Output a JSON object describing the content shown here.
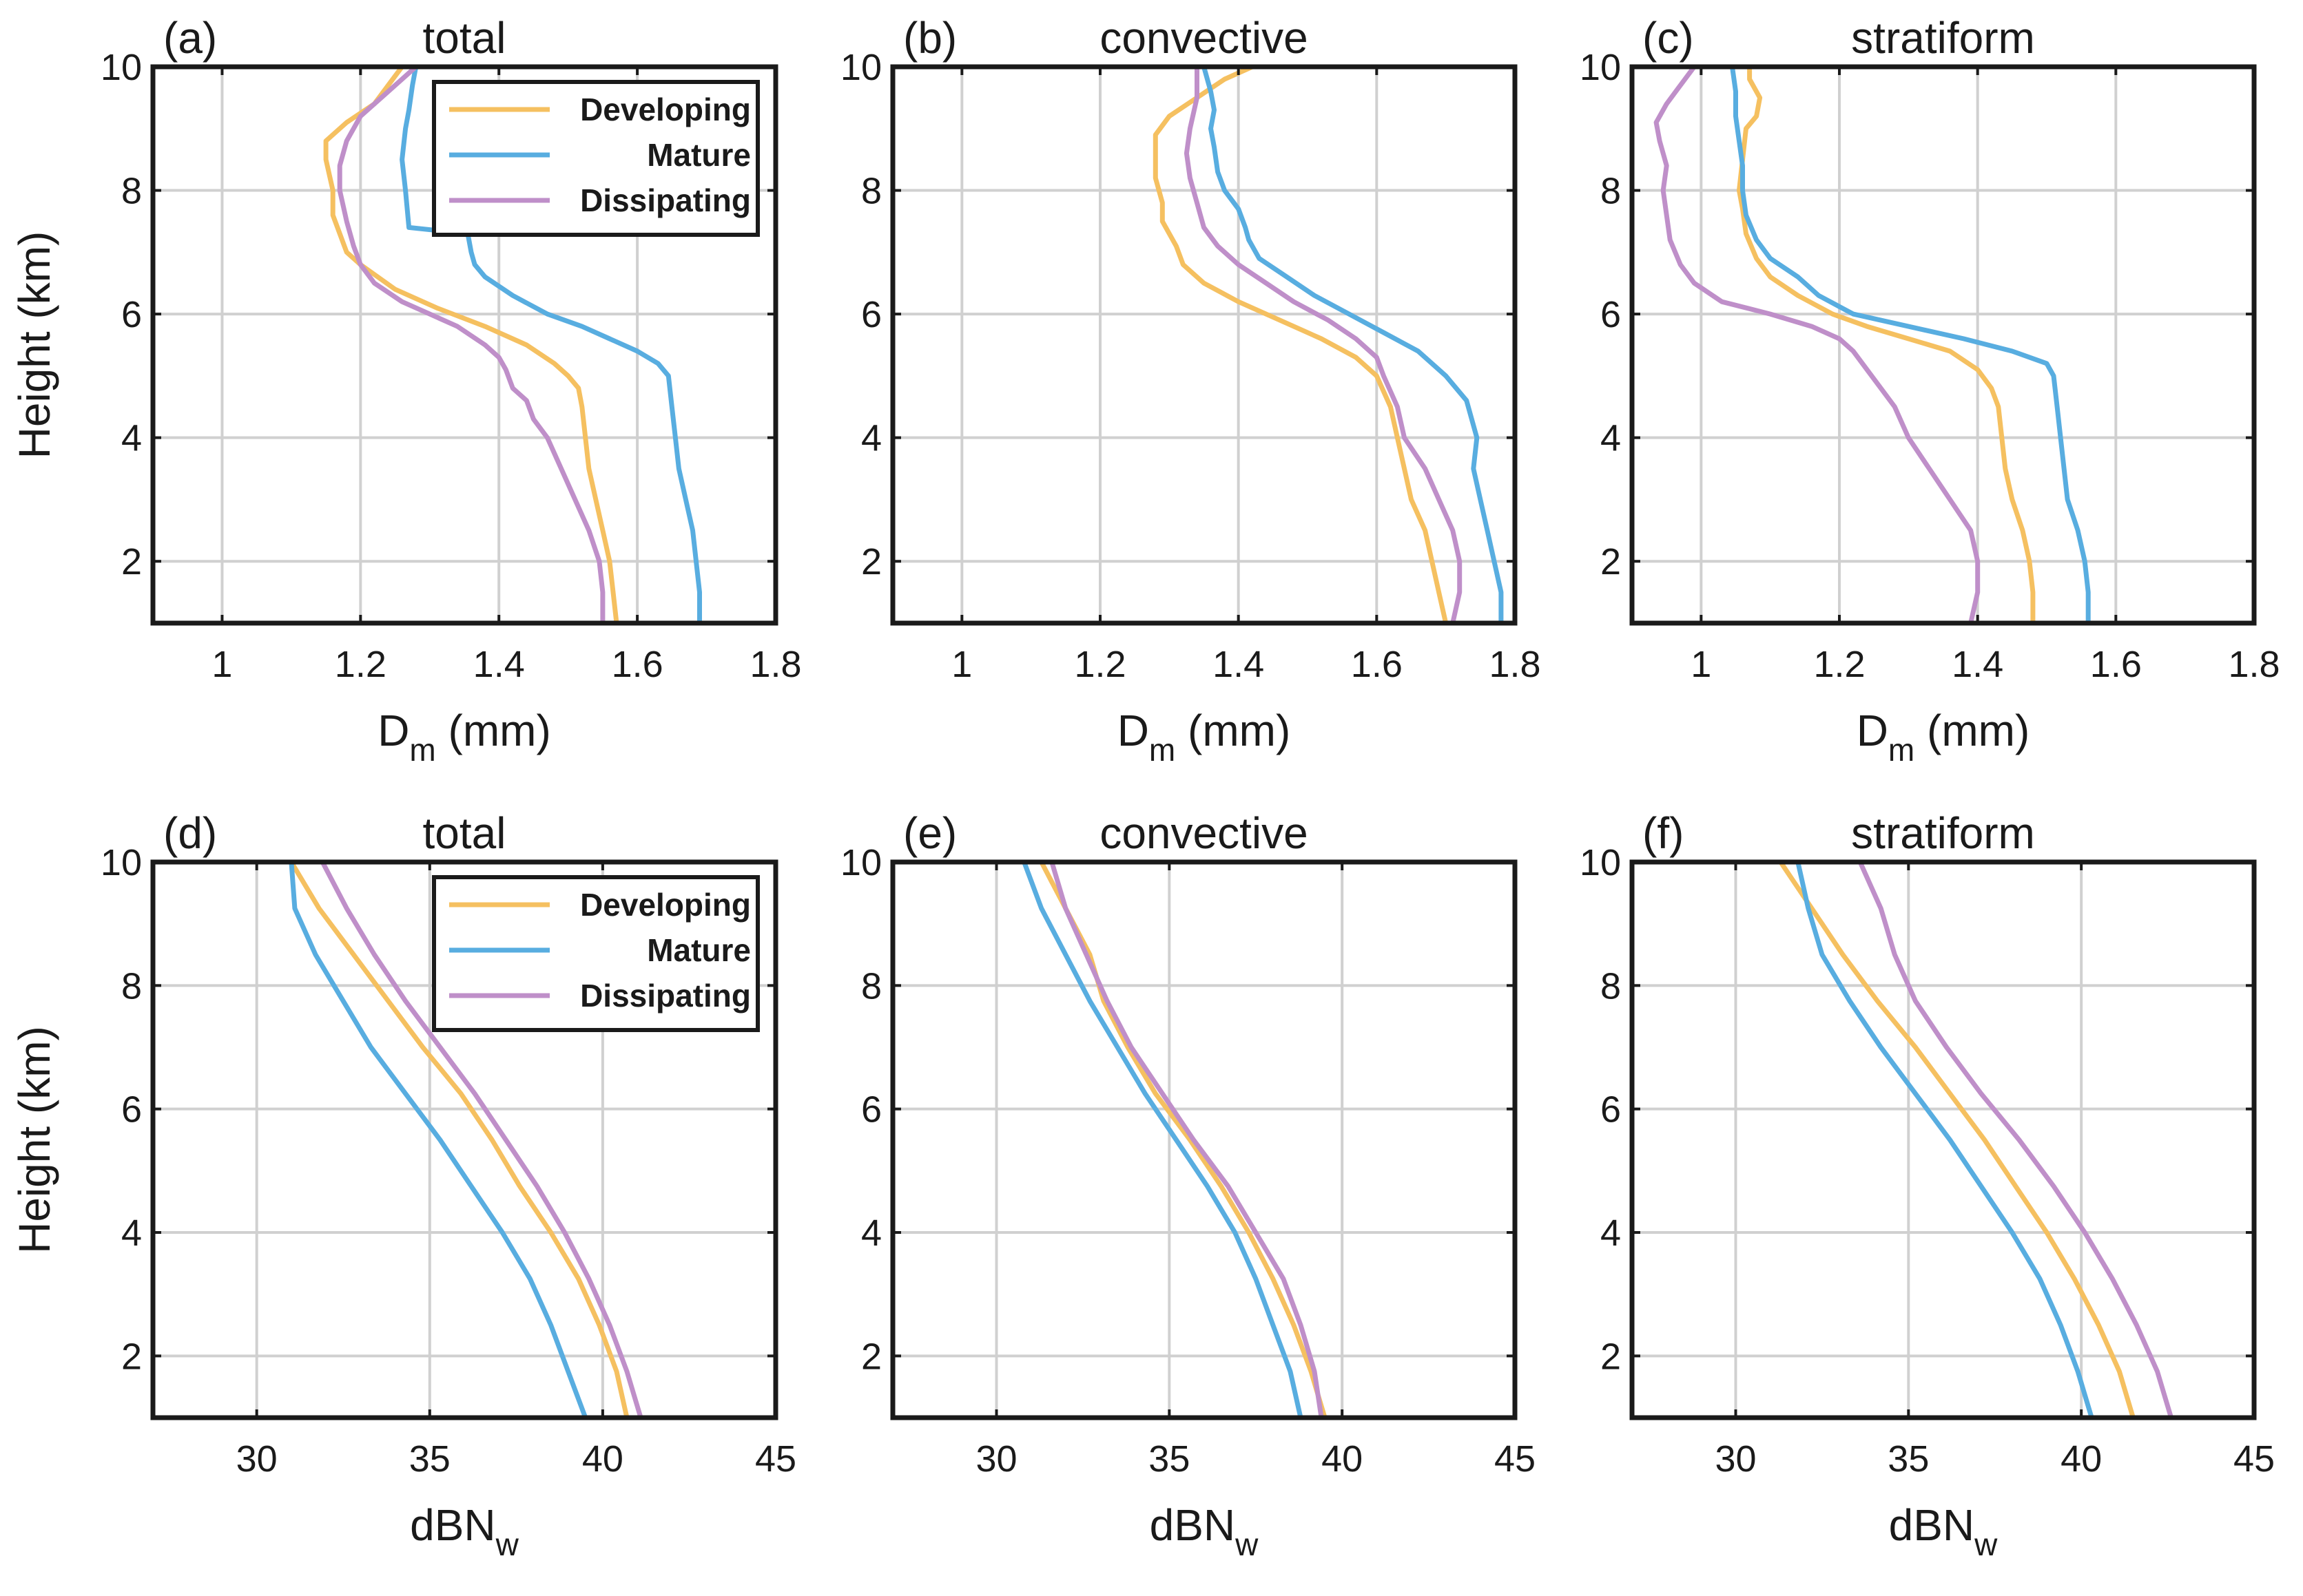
{
  "chart_data": [
    {
      "type": "line",
      "label": "(a)",
      "title": "total",
      "xlabel": "D",
      "xlabel_sub": "m",
      "xlabel_suffix": " (mm)",
      "ylabel": "Height (km)",
      "xlim": [
        0.9,
        1.8
      ],
      "ylim": [
        1,
        10
      ],
      "xticks": [
        1,
        1.2,
        1.4,
        1.6,
        1.8
      ],
      "xtick_labels": [
        "1",
        "1.2",
        "1.4",
        "1.6",
        "1.8"
      ],
      "yticks": [
        2,
        4,
        6,
        8,
        10
      ],
      "ytick_labels": [
        "2",
        "4",
        "6",
        "8",
        "10"
      ],
      "legend": true,
      "series": [
        {
          "name": "Developing",
          "x": [
            1.57,
            1.565,
            1.56,
            1.55,
            1.54,
            1.53,
            1.525,
            1.52,
            1.515,
            1.5,
            1.48,
            1.44,
            1.38,
            1.31,
            1.25,
            1.2,
            1.18,
            1.17,
            1.16,
            1.16,
            1.15,
            1.15,
            1.18,
            1.22,
            1.24,
            1.26
          ],
          "y": [
            1,
            1.5,
            2,
            2.5,
            3,
            3.5,
            4,
            4.5,
            4.8,
            5,
            5.2,
            5.5,
            5.8,
            6.1,
            6.4,
            6.8,
            7,
            7.3,
            7.6,
            8,
            8.5,
            8.8,
            9.1,
            9.4,
            9.7,
            10
          ]
        },
        {
          "name": "Mature",
          "x": [
            1.69,
            1.69,
            1.685,
            1.68,
            1.67,
            1.66,
            1.655,
            1.65,
            1.645,
            1.63,
            1.6,
            1.56,
            1.52,
            1.47,
            1.42,
            1.38,
            1.365,
            1.36,
            1.355,
            1.27,
            1.265,
            1.26,
            1.265,
            1.27,
            1.275,
            1.28
          ],
          "y": [
            1,
            1.5,
            2,
            2.5,
            3,
            3.5,
            4,
            4.5,
            5,
            5.2,
            5.4,
            5.6,
            5.8,
            6,
            6.3,
            6.6,
            6.8,
            7,
            7.3,
            7.4,
            8,
            8.5,
            9,
            9.3,
            9.7,
            10
          ]
        },
        {
          "name": "Dissipating",
          "x": [
            1.55,
            1.55,
            1.545,
            1.53,
            1.51,
            1.49,
            1.47,
            1.45,
            1.44,
            1.42,
            1.41,
            1.4,
            1.38,
            1.34,
            1.3,
            1.26,
            1.22,
            1.2,
            1.19,
            1.18,
            1.17,
            1.17,
            1.18,
            1.2,
            1.23,
            1.26,
            1.28
          ],
          "y": [
            1,
            1.5,
            2,
            2.5,
            3,
            3.5,
            4,
            4.3,
            4.6,
            4.8,
            5.1,
            5.3,
            5.5,
            5.8,
            6,
            6.2,
            6.5,
            6.8,
            7.1,
            7.5,
            8,
            8.4,
            8.8,
            9.2,
            9.5,
            9.8,
            10
          ]
        }
      ]
    },
    {
      "type": "line",
      "label": "(b)",
      "title": "convective",
      "xlabel": "D",
      "xlabel_sub": "m",
      "xlabel_suffix": " (mm)",
      "ylabel": "",
      "xlim": [
        0.9,
        1.8
      ],
      "ylim": [
        1,
        10
      ],
      "xticks": [
        1,
        1.2,
        1.4,
        1.6,
        1.8
      ],
      "xtick_labels": [
        "1",
        "1.2",
        "1.4",
        "1.6",
        "1.8"
      ],
      "yticks": [
        2,
        4,
        6,
        8,
        10
      ],
      "ytick_labels": [
        "2",
        "4",
        "6",
        "8",
        "10"
      ],
      "legend": false,
      "series": [
        {
          "name": "Developing",
          "x": [
            1.7,
            1.69,
            1.68,
            1.67,
            1.65,
            1.64,
            1.63,
            1.62,
            1.6,
            1.57,
            1.52,
            1.46,
            1.4,
            1.35,
            1.32,
            1.31,
            1.29,
            1.29,
            1.28,
            1.28,
            1.28,
            1.3,
            1.34,
            1.38,
            1.42
          ],
          "y": [
            1,
            1.5,
            2,
            2.5,
            3,
            3.5,
            4,
            4.5,
            5,
            5.3,
            5.6,
            5.9,
            6.2,
            6.5,
            6.8,
            7.1,
            7.5,
            7.8,
            8.2,
            8.6,
            8.9,
            9.2,
            9.5,
            9.8,
            10
          ]
        },
        {
          "name": "Mature",
          "x": [
            1.78,
            1.78,
            1.77,
            1.76,
            1.75,
            1.74,
            1.745,
            1.73,
            1.7,
            1.66,
            1.61,
            1.56,
            1.51,
            1.47,
            1.43,
            1.415,
            1.41,
            1.4,
            1.38,
            1.37,
            1.365,
            1.36,
            1.365,
            1.36,
            1.35
          ],
          "y": [
            1,
            1.5,
            2,
            2.5,
            3,
            3.5,
            4,
            4.6,
            5,
            5.4,
            5.7,
            6,
            6.3,
            6.6,
            6.9,
            7.2,
            7.4,
            7.7,
            8,
            8.3,
            8.7,
            9,
            9.3,
            9.6,
            10
          ]
        },
        {
          "name": "Dissipating",
          "x": [
            1.71,
            1.72,
            1.72,
            1.71,
            1.69,
            1.67,
            1.64,
            1.63,
            1.61,
            1.6,
            1.57,
            1.53,
            1.48,
            1.44,
            1.4,
            1.37,
            1.35,
            1.34,
            1.33,
            1.325,
            1.33,
            1.34,
            1.34
          ],
          "y": [
            1,
            1.5,
            2,
            2.5,
            3,
            3.5,
            4,
            4.5,
            5,
            5.3,
            5.6,
            5.9,
            6.2,
            6.5,
            6.8,
            7.1,
            7.4,
            7.8,
            8.2,
            8.6,
            9,
            9.5,
            10
          ]
        }
      ]
    },
    {
      "type": "line",
      "label": "(c)",
      "title": "stratiform",
      "xlabel": "D",
      "xlabel_sub": "m",
      "xlabel_suffix": " (mm)",
      "ylabel": "",
      "xlim": [
        0.9,
        1.8
      ],
      "ylim": [
        1,
        10
      ],
      "xticks": [
        1,
        1.2,
        1.4,
        1.6,
        1.8
      ],
      "xtick_labels": [
        "1",
        "1.2",
        "1.4",
        "1.6",
        "1.8"
      ],
      "yticks": [
        2,
        4,
        6,
        8,
        10
      ],
      "ytick_labels": [
        "2",
        "4",
        "6",
        "8",
        "10"
      ],
      "legend": false,
      "series": [
        {
          "name": "Developing",
          "x": [
            1.48,
            1.48,
            1.475,
            1.465,
            1.45,
            1.44,
            1.435,
            1.43,
            1.42,
            1.4,
            1.36,
            1.3,
            1.24,
            1.19,
            1.14,
            1.1,
            1.08,
            1.065,
            1.06,
            1.055,
            1.06,
            1.065,
            1.08,
            1.085,
            1.07,
            1.07
          ],
          "y": [
            1,
            1.5,
            2,
            2.5,
            3,
            3.5,
            4,
            4.5,
            4.8,
            5.1,
            5.4,
            5.6,
            5.8,
            6,
            6.3,
            6.6,
            6.9,
            7.3,
            7.7,
            8,
            8.5,
            9,
            9.2,
            9.5,
            9.8,
            10
          ]
        },
        {
          "name": "Mature",
          "x": [
            1.56,
            1.56,
            1.555,
            1.545,
            1.53,
            1.525,
            1.52,
            1.515,
            1.51,
            1.5,
            1.45,
            1.38,
            1.3,
            1.22,
            1.17,
            1.14,
            1.1,
            1.08,
            1.065,
            1.06,
            1.06,
            1.055,
            1.05,
            1.05,
            1.045
          ],
          "y": [
            1,
            1.5,
            2,
            2.5,
            3,
            3.5,
            4,
            4.5,
            5,
            5.2,
            5.4,
            5.6,
            5.8,
            6,
            6.3,
            6.6,
            6.9,
            7.2,
            7.6,
            8,
            8.4,
            8.8,
            9.2,
            9.6,
            10
          ]
        },
        {
          "name": "Dissipating",
          "x": [
            1.39,
            1.4,
            1.4,
            1.39,
            1.36,
            1.33,
            1.3,
            1.28,
            1.26,
            1.24,
            1.22,
            1.2,
            1.16,
            1.1,
            1.03,
            0.99,
            0.97,
            0.955,
            0.95,
            0.945,
            0.95,
            0.94,
            0.935,
            0.95,
            0.97,
            0.99
          ],
          "y": [
            1,
            1.5,
            2,
            2.5,
            3,
            3.5,
            4,
            4.5,
            4.8,
            5.1,
            5.4,
            5.6,
            5.8,
            6,
            6.2,
            6.5,
            6.8,
            7.2,
            7.6,
            8,
            8.4,
            8.8,
            9.1,
            9.4,
            9.7,
            10
          ]
        }
      ]
    },
    {
      "type": "line",
      "label": "(d)",
      "title": "total",
      "xlabel": "dBN",
      "xlabel_sub": "w",
      "xlabel_suffix": "",
      "ylabel": "Height (km)",
      "xlim": [
        27,
        45
      ],
      "ylim": [
        1,
        10
      ],
      "xticks": [
        30,
        35,
        40,
        45
      ],
      "xtick_labels": [
        "30",
        "35",
        "40",
        "45"
      ],
      "yticks": [
        2,
        4,
        6,
        8,
        10
      ],
      "ytick_labels": [
        "2",
        "4",
        "6",
        "8",
        "10"
      ],
      "legend": true,
      "series": [
        {
          "name": "Developing",
          "x": [
            40.7,
            40.4,
            39.9,
            39.3,
            38.5,
            37.6,
            36.8,
            35.9,
            34.8,
            33.8,
            32.8,
            31.8,
            31.0
          ],
          "y": [
            1,
            1.75,
            2.5,
            3.25,
            4,
            4.75,
            5.5,
            6.25,
            7,
            7.75,
            8.5,
            9.25,
            10
          ]
        },
        {
          "name": "Mature",
          "x": [
            39.5,
            39.0,
            38.5,
            37.9,
            37.1,
            36.2,
            35.3,
            34.3,
            33.3,
            32.5,
            31.7,
            31.1,
            31.0
          ],
          "y": [
            1,
            1.75,
            2.5,
            3.25,
            4,
            4.75,
            5.5,
            6.25,
            7,
            7.75,
            8.5,
            9.25,
            10
          ]
        },
        {
          "name": "Dissipating",
          "x": [
            41.1,
            40.7,
            40.2,
            39.6,
            38.9,
            38.1,
            37.2,
            36.3,
            35.3,
            34.3,
            33.4,
            32.6,
            31.9
          ],
          "y": [
            1,
            1.75,
            2.5,
            3.25,
            4,
            4.75,
            5.5,
            6.25,
            7,
            7.75,
            8.5,
            9.25,
            10
          ]
        }
      ]
    },
    {
      "type": "line",
      "label": "(e)",
      "title": "convective",
      "xlabel": "dBN",
      "xlabel_sub": "w",
      "xlabel_suffix": "",
      "ylabel": "",
      "xlim": [
        27,
        45
      ],
      "ylim": [
        1,
        10
      ],
      "xticks": [
        30,
        35,
        40,
        45
      ],
      "xtick_labels": [
        "30",
        "35",
        "40",
        "45"
      ],
      "yticks": [
        2,
        4,
        6,
        8,
        10
      ],
      "ytick_labels": [
        "2",
        "4",
        "6",
        "8",
        "10"
      ],
      "legend": false,
      "series": [
        {
          "name": "Developing",
          "x": [
            39.5,
            39.1,
            38.6,
            38.0,
            37.3,
            36.5,
            35.6,
            34.6,
            33.8,
            33.1,
            32.7,
            32.0,
            31.3
          ],
          "y": [
            1,
            1.75,
            2.5,
            3.25,
            4,
            4.75,
            5.5,
            6.25,
            7,
            7.75,
            8.5,
            9.25,
            10
          ]
        },
        {
          "name": "Mature",
          "x": [
            38.8,
            38.5,
            38.0,
            37.5,
            36.9,
            36.1,
            35.2,
            34.3,
            33.5,
            32.7,
            32.0,
            31.3,
            30.8
          ],
          "y": [
            1,
            1.75,
            2.5,
            3.25,
            4,
            4.75,
            5.5,
            6.25,
            7,
            7.75,
            8.5,
            9.25,
            10
          ]
        },
        {
          "name": "Dissipating",
          "x": [
            39.4,
            39.2,
            38.8,
            38.3,
            37.5,
            36.7,
            35.7,
            34.8,
            33.9,
            33.2,
            32.6,
            32.0,
            31.6
          ],
          "y": [
            1,
            1.75,
            2.5,
            3.25,
            4,
            4.75,
            5.5,
            6.25,
            7,
            7.75,
            8.5,
            9.25,
            10
          ]
        }
      ]
    },
    {
      "type": "line",
      "label": "(f)",
      "title": "stratiform",
      "xlabel": "dBN",
      "xlabel_sub": "w",
      "xlabel_suffix": "",
      "ylabel": "",
      "xlim": [
        27,
        45
      ],
      "ylim": [
        1,
        10
      ],
      "xticks": [
        30,
        35,
        40,
        45
      ],
      "xtick_labels": [
        "30",
        "35",
        "40",
        "45"
      ],
      "yticks": [
        2,
        4,
        6,
        8,
        10
      ],
      "ytick_labels": [
        "2",
        "4",
        "6",
        "8",
        "10"
      ],
      "legend": false,
      "series": [
        {
          "name": "Developing",
          "x": [
            41.5,
            41.1,
            40.5,
            39.8,
            39.0,
            38.1,
            37.2,
            36.2,
            35.2,
            34.1,
            33.1,
            32.2,
            31.3
          ],
          "y": [
            1,
            1.75,
            2.5,
            3.25,
            4,
            4.75,
            5.5,
            6.25,
            7,
            7.75,
            8.5,
            9.25,
            10
          ]
        },
        {
          "name": "Mature",
          "x": [
            40.3,
            39.9,
            39.4,
            38.8,
            38.0,
            37.1,
            36.2,
            35.2,
            34.2,
            33.3,
            32.5,
            32.1,
            31.8
          ],
          "y": [
            1,
            1.75,
            2.5,
            3.25,
            4,
            4.75,
            5.5,
            6.25,
            7,
            7.75,
            8.5,
            9.25,
            10
          ]
        },
        {
          "name": "Dissipating",
          "x": [
            42.6,
            42.2,
            41.6,
            40.9,
            40.1,
            39.2,
            38.2,
            37.1,
            36.1,
            35.2,
            34.6,
            34.2,
            33.6
          ],
          "y": [
            1,
            1.75,
            2.5,
            3.25,
            4,
            4.75,
            5.5,
            6.25,
            7,
            7.75,
            8.5,
            9.25,
            10
          ]
        }
      ]
    }
  ],
  "legend_entries": [
    "Developing",
    "Mature",
    "Dissipating"
  ],
  "colors": {
    "Developing": "#f5c060",
    "Mature": "#58ade0",
    "Dissipating": "#bf8fc9",
    "grid": "#d0d0d0",
    "axes": "#1a1a1a"
  }
}
